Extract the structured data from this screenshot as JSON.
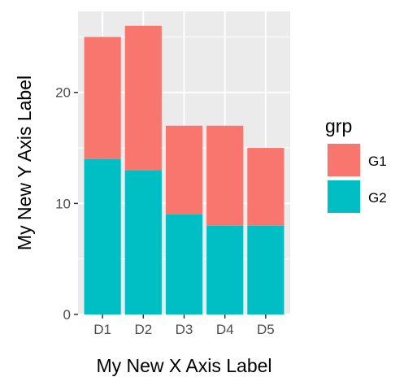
{
  "chart_data": {
    "type": "bar",
    "stacked": true,
    "categories": [
      "D1",
      "D2",
      "D3",
      "D4",
      "D5"
    ],
    "series": [
      {
        "name": "G2",
        "values": [
          14,
          13,
          9,
          8,
          8
        ],
        "color": "#00bfc4"
      },
      {
        "name": "G1",
        "values": [
          11,
          13,
          8,
          9,
          7
        ],
        "color": "#f8766d"
      }
    ],
    "xlabel": "My New X Axis Label",
    "ylabel": "My New Y Axis Label",
    "ylim": [
      0,
      27.3
    ],
    "yticks": [
      0,
      10,
      20
    ],
    "grid": true,
    "panel_background": "#ebebeb",
    "legend": {
      "title": "grp",
      "placement": "right",
      "entries": [
        "G1",
        "G2"
      ]
    }
  }
}
